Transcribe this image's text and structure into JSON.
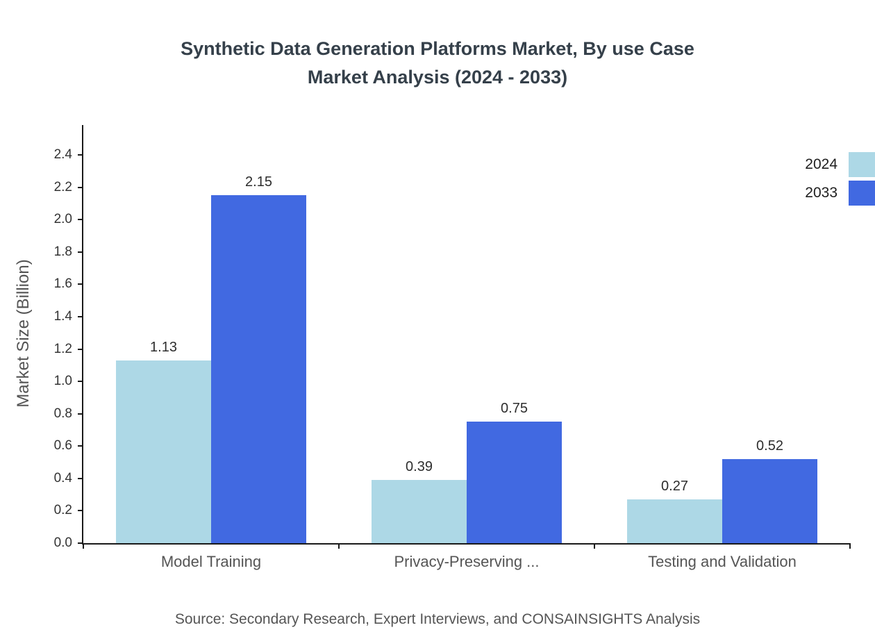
{
  "title": "Synthetic Data Generation Platforms Market, By use Case\nMarket Analysis (2024 - 2033)",
  "source": "Source: Secondary Research, Expert Interviews, and CONSAINSIGHTS Analysis",
  "chart_data": {
    "type": "bar",
    "title": "Synthetic Data Generation Platforms Market, By use Case Market Analysis (2024 - 2033)",
    "categories": [
      "Model Training",
      "Privacy-Preserving ...",
      "Testing and Validation"
    ],
    "series": [
      {
        "name": "2024",
        "color": "#ADD8E6",
        "values": [
          1.13,
          0.39,
          0.27
        ]
      },
      {
        "name": "2033",
        "color": "#4169E1",
        "values": [
          2.15,
          0.75,
          0.52
        ]
      }
    ],
    "xlabel": "",
    "ylabel": "Market Size (Billion)",
    "ylim": [
      0,
      2.4
    ],
    "ytick_step": 0.2,
    "grid": false,
    "legend_position": "top-right",
    "value_labels": true,
    "axis_color": "#1a1a1a",
    "text_color": "#555555"
  }
}
